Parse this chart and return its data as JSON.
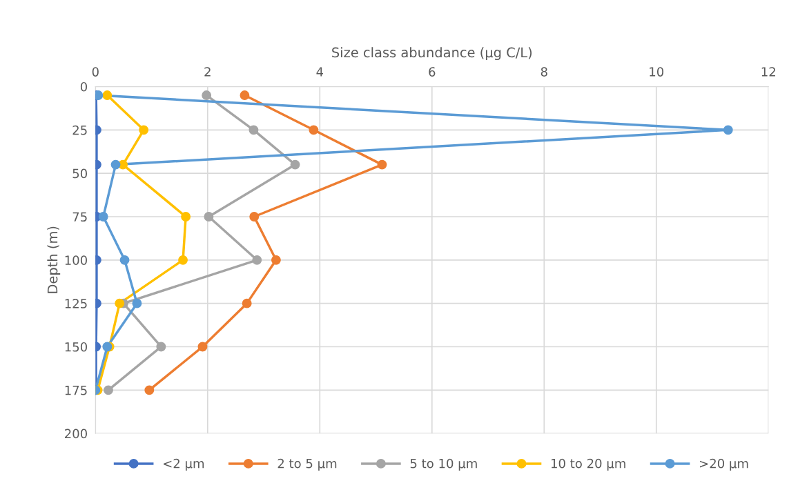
{
  "chart_data": {
    "type": "line",
    "orientation": "horizontal",
    "xlabel": "Size class abundance (µg C/L)",
    "ylabel": "Depth (m)",
    "x": [
      5,
      25,
      45,
      75,
      100,
      125,
      150,
      175
    ],
    "series": [
      {
        "name": "<2 µm",
        "color": "#4472c4",
        "values": [
          0.01,
          0.02,
          0.02,
          0.02,
          0.02,
          0.02,
          0.01,
          0.01
        ]
      },
      {
        "name": "2 to 5 µm",
        "color": "#ed7d31",
        "values": [
          2.66,
          3.89,
          5.11,
          2.83,
          3.22,
          2.7,
          1.91,
          0.96
        ]
      },
      {
        "name": "5 to 10 µm",
        "color": "#a5a5a5",
        "values": [
          1.98,
          2.82,
          3.56,
          2.02,
          2.88,
          0.5,
          1.17,
          0.23
        ]
      },
      {
        "name": "10 to 20 µm",
        "color": "#ffc000",
        "values": [
          0.21,
          0.86,
          0.49,
          1.61,
          1.56,
          0.43,
          0.25,
          0.04
        ]
      },
      {
        "name": ">20 µm",
        "color": "#5b9bd5",
        "values": [
          0.05,
          11.28,
          0.36,
          0.14,
          0.52,
          0.74,
          0.21,
          0.0
        ]
      }
    ],
    "xlim": [
      0,
      12
    ],
    "xticks": [
      0,
      2,
      4,
      6,
      8,
      10,
      12
    ],
    "ylim": [
      200,
      0
    ],
    "yticks": [
      0,
      25,
      50,
      75,
      100,
      125,
      150,
      175,
      200
    ],
    "grid": true,
    "legend": "bottom",
    "marker": "circle",
    "line_style": "solid"
  }
}
